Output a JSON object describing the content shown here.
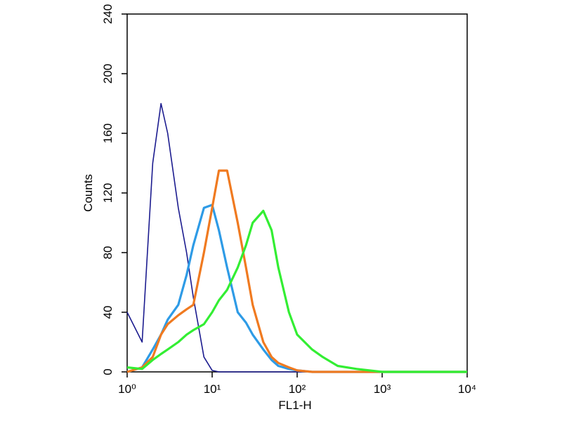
{
  "chart_data": {
    "type": "line",
    "xlabel": "FL1-H",
    "ylabel": "Counts",
    "xscale": "log",
    "xlim": [
      1,
      10000
    ],
    "xticks": [
      {
        "value": 1,
        "label": "10⁰"
      },
      {
        "value": 10,
        "label": "10¹"
      },
      {
        "value": 100,
        "label": "10²"
      },
      {
        "value": 1000,
        "label": "10³"
      },
      {
        "value": 10000,
        "label": "10⁴"
      }
    ],
    "ylim": [
      0,
      240
    ],
    "yticks": [
      0,
      40,
      80,
      120,
      160,
      200,
      240
    ],
    "x": [
      1,
      1.5,
      2,
      2.5,
      3,
      4,
      5,
      6,
      8,
      10,
      12,
      15,
      20,
      25,
      30,
      40,
      50,
      60,
      80,
      100,
      150,
      200,
      300,
      500,
      700,
      1000,
      10000
    ],
    "series": [
      {
        "color": "#1c1c8f",
        "values": [
          40,
          20,
          140,
          180,
          160,
          110,
          80,
          50,
          10,
          1,
          0,
          0,
          0,
          0,
          0,
          0,
          0,
          0,
          0,
          0,
          0,
          0,
          0,
          0,
          0,
          0,
          0
        ]
      },
      {
        "color": "#2e9be6",
        "values": [
          0,
          3,
          15,
          25,
          35,
          45,
          65,
          85,
          110,
          112,
          95,
          70,
          40,
          33,
          25,
          15,
          8,
          4,
          2,
          1,
          0,
          0,
          0,
          0,
          0,
          0,
          0
        ]
      },
      {
        "color": "#f07a20",
        "values": [
          0,
          3,
          10,
          25,
          32,
          38,
          42,
          45,
          80,
          110,
          135,
          135,
          100,
          70,
          45,
          20,
          10,
          6,
          3,
          1,
          0,
          0,
          0,
          0,
          0,
          0,
          0
        ]
      },
      {
        "color": "#33ee33",
        "values": [
          3,
          2,
          8,
          12,
          15,
          20,
          25,
          28,
          32,
          40,
          48,
          55,
          70,
          85,
          100,
          108,
          95,
          70,
          40,
          25,
          15,
          10,
          4,
          2,
          1,
          0,
          0
        ]
      }
    ]
  }
}
